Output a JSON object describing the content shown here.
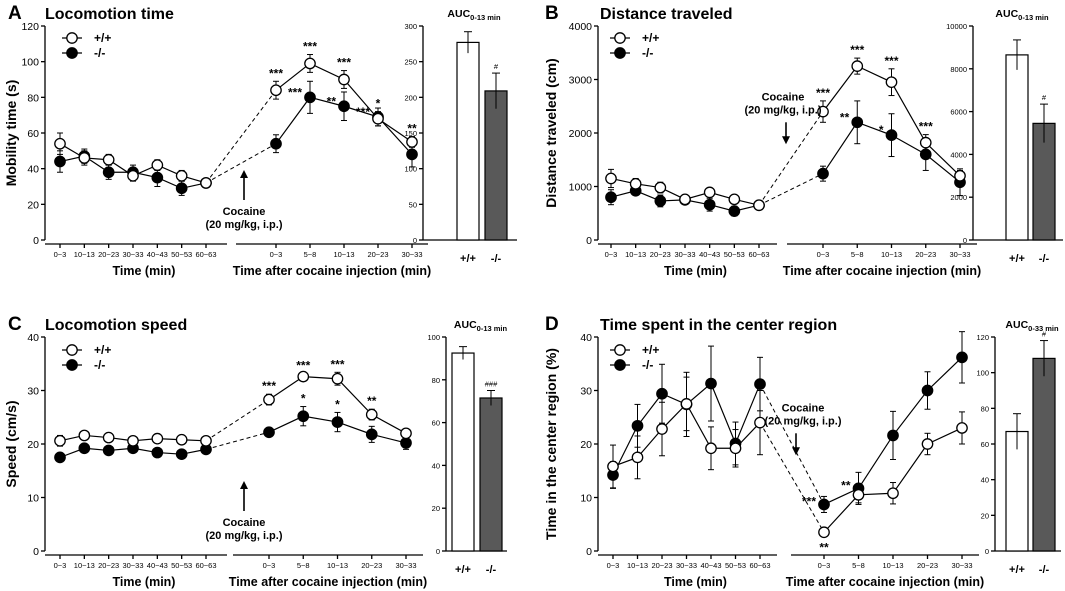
{
  "chart_data": [
    {
      "panel": "A",
      "title": "Locomotion time",
      "ylabel": "Mobility time (s)",
      "ylim": [
        0,
        120
      ],
      "yticks": [
        "0",
        "20",
        "40",
        "60",
        "80",
        "100",
        "120"
      ],
      "legend": [
        "+/+",
        "-/-"
      ],
      "annotation": [
        "Cocaine",
        "(20 mg/kg, i.p.)"
      ],
      "arrow_dir": "up",
      "pre": {
        "xlabel": "Time (min)",
        "categories": [
          "0~3",
          "10~13",
          "20~23",
          "30~33",
          "40~43",
          "50~53",
          "60~63"
        ],
        "series": [
          {
            "name": "+/+",
            "values": [
              54,
              46,
              45,
              36,
              42,
              36,
              32
            ],
            "err": [
              6,
              4,
              3,
              3,
              3,
              3,
              2
            ]
          },
          {
            "name": "-/-",
            "values": [
              44,
              47,
              38,
              38,
              35,
              29,
              32
            ],
            "err": [
              6,
              4,
              4,
              4,
              5,
              4,
              2
            ]
          }
        ]
      },
      "post": {
        "xlabel": "Time after cocaine injection (min)",
        "categories": [
          "0~3",
          "5~8",
          "10~13",
          "20~23",
          "30~33"
        ],
        "series": [
          {
            "name": "+/+",
            "values": [
              84,
              99,
              90,
              68,
              55
            ],
            "err": [
              5,
              5,
              5,
              4,
              3
            ],
            "stars": [
              "***",
              "***",
              "***",
              "*",
              "**"
            ]
          },
          {
            "name": "-/-",
            "values": [
              54,
              80,
              75,
              69,
              48
            ],
            "err": [
              5,
              9,
              8,
              5,
              7
            ],
            "stars": [
              "",
              "***",
              "**",
              "***",
              ""
            ]
          }
        ]
      },
      "auc": {
        "label": "AUC",
        "sub": "0-13 min",
        "ylim": [
          0,
          300
        ],
        "yticks": [
          "0",
          "50",
          "100",
          "150",
          "200",
          "250",
          "300"
        ],
        "categories": [
          "+/+",
          "-/-"
        ],
        "values": [
          277,
          209
        ],
        "err": [
          15,
          25
        ],
        "sig": [
          "",
          "#"
        ]
      }
    },
    {
      "panel": "B",
      "title": "Distance traveled",
      "ylabel": "Distance traveled (cm)",
      "ylim": [
        0,
        4000
      ],
      "yticks": [
        "0",
        "1000",
        "2000",
        "3000",
        "4000"
      ],
      "legend": [
        "+/+",
        "-/-"
      ],
      "annotation": [
        "Cocaine",
        "(20 mg/kg, i.p.)"
      ],
      "arrow_dir": "down",
      "pre": {
        "xlabel": "Time (min)",
        "categories": [
          "0~3",
          "10~13",
          "20~23",
          "30~33",
          "40~43",
          "50~53",
          "60~63"
        ],
        "series": [
          {
            "name": "+/+",
            "values": [
              1150,
              1050,
              980,
              760,
              890,
              760,
              650
            ],
            "err": [
              170,
              100,
              100,
              80,
              80,
              80,
              50
            ]
          },
          {
            "name": "-/-",
            "values": [
              800,
              920,
              730,
              750,
              660,
              540,
              650
            ],
            "err": [
              140,
              80,
              110,
              80,
              120,
              90,
              60
            ]
          }
        ]
      },
      "post": {
        "xlabel": "Time after cocaine injection (min)",
        "categories": [
          "0~3",
          "5~8",
          "10~13",
          "20~23",
          "30~33"
        ],
        "series": [
          {
            "name": "+/+",
            "values": [
              2400,
              3250,
              2950,
              1820,
              1200
            ],
            "err": [
              200,
              150,
              250,
              150,
              100
            ],
            "stars": [
              "***",
              "***",
              "***",
              "***",
              ""
            ]
          },
          {
            "name": "-/-",
            "values": [
              1240,
              2200,
              1960,
              1600,
              1080
            ],
            "err": [
              140,
              400,
              400,
              300,
              250
            ],
            "stars": [
              "",
              "**",
              "*",
              "",
              ""
            ]
          }
        ]
      },
      "auc": {
        "label": "AUC",
        "sub": "0-13 min",
        "ylim": [
          0,
          10000
        ],
        "yticks": [
          "0",
          "2000",
          "4000",
          "6000",
          "8000",
          "10000"
        ],
        "categories": [
          "+/+",
          "-/-"
        ],
        "values": [
          8650,
          5450
        ],
        "err": [
          700,
          900
        ],
        "sig": [
          "",
          "#"
        ]
      }
    },
    {
      "panel": "C",
      "title": "Locomotion speed",
      "ylabel": "Speed (cm/s)",
      "ylim": [
        0,
        40
      ],
      "yticks": [
        "0",
        "10",
        "20",
        "30",
        "40"
      ],
      "legend": [
        "+/+",
        "-/-"
      ],
      "annotation": [
        "Cocaine",
        "(20 mg/kg, i.p.)"
      ],
      "arrow_dir": "up",
      "pre": {
        "xlabel": "Time (min)",
        "categories": [
          "0~3",
          "10~13",
          "20~23",
          "30~33",
          "40~43",
          "50~53",
          "60~63"
        ],
        "series": [
          {
            "name": "+/+",
            "values": [
              20.6,
              21.6,
              21.2,
              20.6,
              21.0,
              20.8,
              20.6
            ],
            "err": [
              1,
              0.6,
              0.6,
              0.5,
              0.5,
              0.5,
              0.4
            ]
          },
          {
            "name": "-/-",
            "values": [
              17.5,
              19.2,
              18.8,
              19.2,
              18.4,
              18.1,
              19.0
            ],
            "err": [
              0.6,
              0.6,
              0.5,
              0.5,
              0.5,
              0.5,
              0.5
            ]
          }
        ]
      },
      "post": {
        "xlabel": "Time after cocaine injection (min)",
        "categories": [
          "0~3",
          "5~8",
          "10~13",
          "20~23",
          "30~33"
        ],
        "series": [
          {
            "name": "+/+",
            "values": [
              28.3,
              32.6,
              32.2,
              25.5,
              22.0
            ],
            "err": [
              1.0,
              0.6,
              1.2,
              1.0,
              0.8
            ],
            "stars": [
              "***",
              "***",
              "***",
              "**",
              ""
            ]
          },
          {
            "name": "-/-",
            "values": [
              22.2,
              25.2,
              24.1,
              21.8,
              20.2
            ],
            "err": [
              0.8,
              1.8,
              1.8,
              1.5,
              1.2
            ],
            "stars": [
              "",
              "*",
              "*",
              "",
              ""
            ]
          }
        ]
      },
      "auc": {
        "label": "AUC",
        "sub": "0-13 min",
        "ylim": [
          0,
          100
        ],
        "yticks": [
          "0",
          "20",
          "40",
          "60",
          "80",
          "100"
        ],
        "categories": [
          "+/+",
          "-/-"
        ],
        "values": [
          92.5,
          71.5
        ],
        "err": [
          3,
          3.5
        ],
        "sig": [
          "",
          "###"
        ]
      }
    },
    {
      "panel": "D",
      "title": "Time spent in the center region",
      "ylabel": "Time in the center region (%)",
      "ylim": [
        0,
        40
      ],
      "yticks": [
        "0",
        "10",
        "20",
        "30",
        "40"
      ],
      "legend": [
        "+/+",
        "-/-"
      ],
      "annotation": [
        "Cocaine",
        "(20 mg/kg, i.p.)"
      ],
      "arrow_dir": "down",
      "pre": {
        "xlabel": "Time (min)",
        "categories": [
          "0~3",
          "10~13",
          "20~23",
          "30~33",
          "40~43",
          "50~53",
          "60~63"
        ],
        "series": [
          {
            "name": "+/+",
            "values": [
              15.8,
              17.5,
              22.8,
              27.5,
              19.2,
              19.2,
              24.0
            ],
            "err": [
              4,
              4,
              5,
              5,
              4,
              3.5,
              6
            ]
          },
          {
            "name": "-/-",
            "values": [
              14.2,
              23.4,
              29.4,
              27.4,
              31.3,
              20.1,
              31.2
            ],
            "err": [
              2.5,
              4,
              5.5,
              6,
              7,
              4,
              5
            ]
          }
        ]
      },
      "post": {
        "xlabel": "Time after cocaine injection (min)",
        "categories": [
          "0~3",
          "5~8",
          "10~13",
          "20~23",
          "30~33"
        ],
        "series": [
          {
            "name": "+/+",
            "values": [
              3.5,
              10.5,
              10.8,
              20.0,
              23.0
            ],
            "err": [
              0.8,
              1.5,
              2.0,
              2.0,
              3.0
            ],
            "stars": [
              "**",
              "",
              "",
              "",
              ""
            ]
          },
          {
            "name": "-/-",
            "values": [
              8.7,
              11.7,
              21.6,
              30.0,
              36.2
            ],
            "err": [
              1.5,
              3.0,
              4.5,
              3.5,
              4.8
            ],
            "stars": [
              "***",
              "**",
              "",
              "",
              ""
            ]
          }
        ]
      },
      "auc": {
        "label": "AUC",
        "sub": "0-33 min",
        "ylim": [
          0,
          120
        ],
        "yticks": [
          "0",
          "20",
          "40",
          "60",
          "80",
          "100",
          "120"
        ],
        "categories": [
          "+/+",
          "-/-"
        ],
        "values": [
          67,
          108
        ],
        "err": [
          10,
          10
        ],
        "sig": [
          "",
          "#"
        ]
      }
    }
  ],
  "colors": {
    "wt_marker": "#ffffff",
    "ko_marker": "#000000",
    "wt_bar": "#ffffff",
    "ko_bar": "#595959"
  }
}
